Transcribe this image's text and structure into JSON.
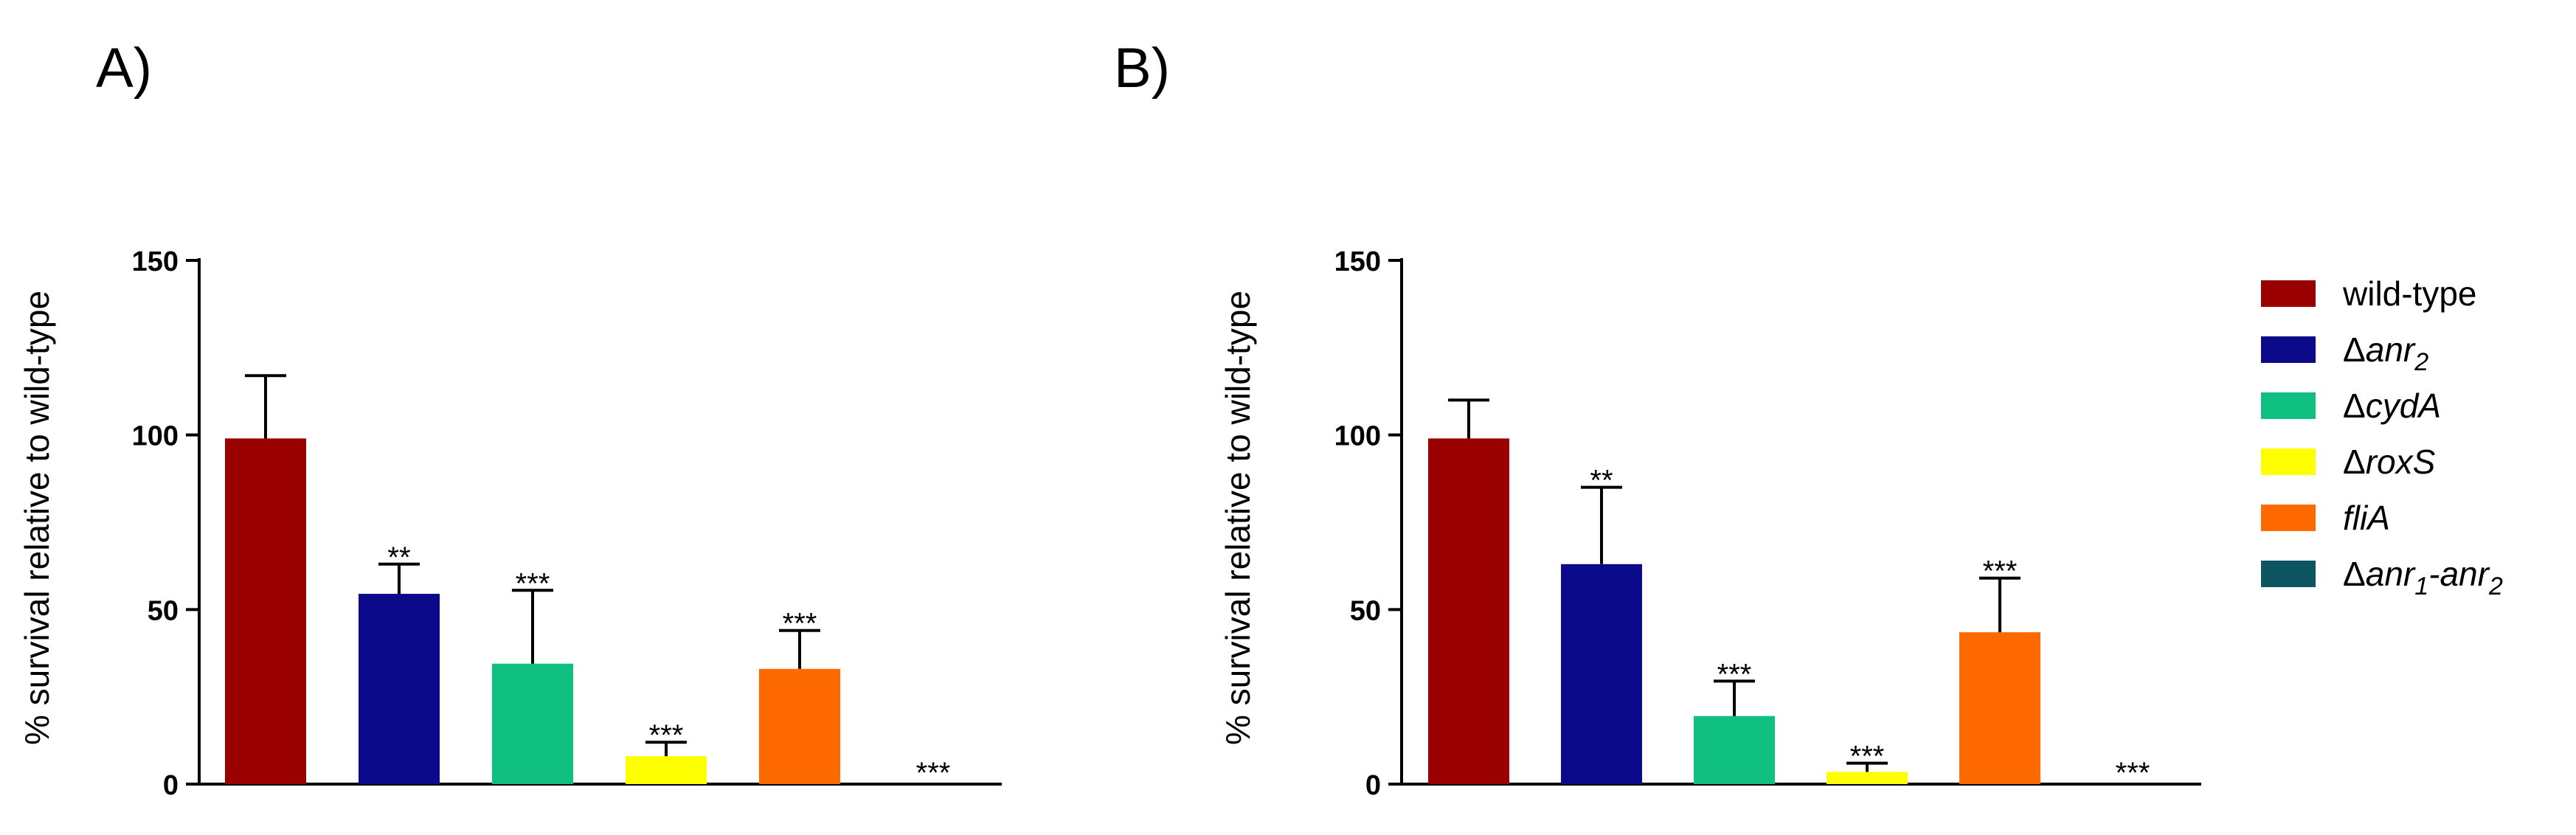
{
  "chart_data": [
    {
      "type": "bar",
      "panel_label": "A)",
      "ylabel": "% survival relative to wild-type",
      "ylim": [
        0,
        150
      ],
      "yticks": [
        "0",
        "50",
        "100",
        "150"
      ],
      "series": [
        {
          "name": "wild-type",
          "value": 99,
          "error": 18,
          "annotation": ""
        },
        {
          "name": "Δanr2",
          "value": 54.5,
          "error": 8.5,
          "annotation": "**"
        },
        {
          "name": "ΔcydA",
          "value": 34.5,
          "error": 21,
          "annotation": "***"
        },
        {
          "name": "ΔroxS",
          "value": 8,
          "error": 4,
          "annotation": "***"
        },
        {
          "name": "fliA",
          "value": 33,
          "error": 11,
          "annotation": "***"
        },
        {
          "name": "Δanr1-anr2",
          "value": 0,
          "error": 0,
          "annotation": "***"
        }
      ]
    },
    {
      "type": "bar",
      "panel_label": "B)",
      "ylabel": "% survival relative to wild-type",
      "ylim": [
        0,
        150
      ],
      "yticks": [
        "0",
        "50",
        "100",
        "150"
      ],
      "series": [
        {
          "name": "wild-type",
          "value": 99,
          "error": 11,
          "annotation": ""
        },
        {
          "name": "Δanr2",
          "value": 63,
          "error": 22,
          "annotation": "**"
        },
        {
          "name": "ΔcydA",
          "value": 19.5,
          "error": 10,
          "annotation": "***"
        },
        {
          "name": "ΔroxS",
          "value": 3.5,
          "error": 2.5,
          "annotation": "***"
        },
        {
          "name": "fliA",
          "value": 43.5,
          "error": 15.5,
          "annotation": "***"
        },
        {
          "name": "Δanr1-anr2",
          "value": 0,
          "error": 0,
          "annotation": "***"
        }
      ]
    }
  ],
  "legend": [
    {
      "label": "wild-type",
      "color": "#9b0000"
    },
    {
      "label": "Δanr2",
      "color": "#0a0a8a"
    },
    {
      "label": "ΔcydA",
      "color": "#10c080"
    },
    {
      "label": "ΔroxS",
      "color": "#ffff00"
    },
    {
      "label": "fliA",
      "color": "#ff6a00"
    },
    {
      "label": "Δanr1-anr2",
      "color": "#0d5563"
    }
  ]
}
